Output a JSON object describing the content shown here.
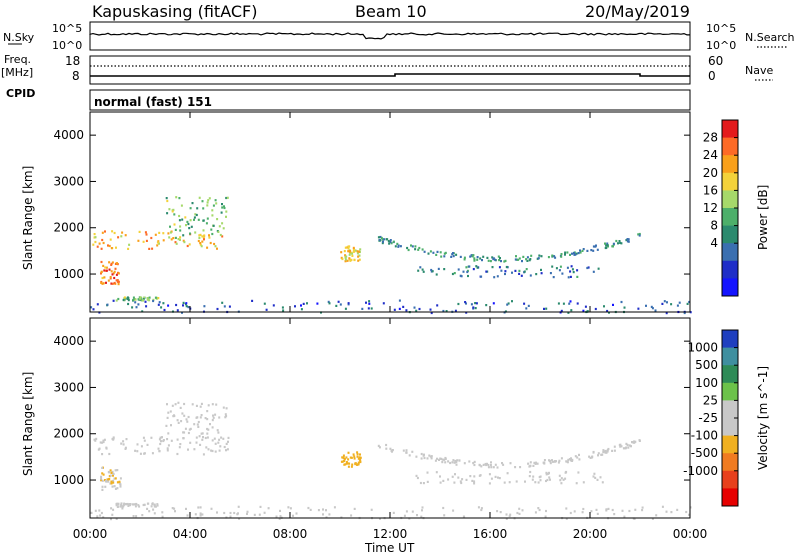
{
  "header": {
    "station": "Kapuskasing (fitACF)",
    "beam": "Beam 10",
    "date": "20/May/2019"
  },
  "strip": {
    "nsky_label": "N.Sky",
    "nsky_ticks": [
      "10^5",
      "10^0"
    ],
    "nsearch_label": "N.Search",
    "nsearch_ticks": [
      "10^5",
      "10^0"
    ],
    "freq_label": "Freq.",
    "freq_unit": "[MHz]",
    "freq_ticks": [
      "18",
      "8"
    ],
    "nave_label": "Nave",
    "nave_ticks": [
      "60",
      "0"
    ],
    "cpid_label": "CPID",
    "cpid_value": "normal (fast) 151"
  },
  "panels": {
    "ylabel": "Slant Range [km]",
    "yticks": [
      "4000",
      "3000",
      "2000",
      "1000"
    ],
    "xlabel": "Time UT",
    "xticks": [
      "00:00",
      "04:00",
      "08:00",
      "12:00",
      "16:00",
      "20:00",
      "00:00"
    ]
  },
  "colorbars": {
    "power": {
      "label": "Power [dB]",
      "ticks": [
        "28",
        "24",
        "20",
        "16",
        "12",
        "8",
        "4"
      ],
      "colors": [
        "#e41a1c",
        "#fd6a26",
        "#f9a01b",
        "#f4d23a",
        "#a6d96a",
        "#4daf6a",
        "#2b8a6e",
        "#3a6fb0",
        "#1f2ec8",
        "#1414ff"
      ]
    },
    "velocity": {
      "label": "Velocity [m s^-1]",
      "ticks": [
        "1000",
        "500",
        "100",
        "25",
        "-25",
        "-100",
        "-500",
        "-1000"
      ],
      "colors": [
        "#1f3fbf",
        "#3f8f9f",
        "#2e8b57",
        "#6cc24a",
        "#c8c8c8",
        "#c8c8c8",
        "#f0b020",
        "#f07b20",
        "#e8401c",
        "#e60000"
      ]
    }
  },
  "chart_data": {
    "type": "heatmap",
    "x_range": [
      "00:00",
      "24:00"
    ],
    "y_range_km": [
      180,
      4500
    ],
    "y_ticks_km": [
      1000,
      2000,
      3000,
      4000
    ],
    "power_range_db": [
      0,
      30
    ],
    "velocity_range_ms": [
      -1000,
      1000
    ],
    "features": [
      {
        "t_start": 0.0,
        "t_end": 5.5,
        "range_km": [
          1550,
          1950
        ],
        "power_db": 22,
        "velocity_ms": 0
      },
      {
        "t_start": 3.0,
        "t_end": 5.5,
        "range_km": [
          1800,
          2700
        ],
        "power_db": 14,
        "velocity_ms": 0
      },
      {
        "t_start": 0.4,
        "t_end": 1.2,
        "range_km": [
          800,
          1300
        ],
        "power_db": 26,
        "velocity_ms": -200
      },
      {
        "t_start": 1.0,
        "t_end": 2.7,
        "range_km": [
          450,
          520
        ],
        "power_db": 14,
        "velocity_ms": -80
      },
      {
        "t_start": 10.0,
        "t_end": 10.8,
        "range_km": [
          1300,
          1650
        ],
        "power_db": 20,
        "velocity_ms": -300
      },
      {
        "t_start": 11.5,
        "t_end": 22.0,
        "range_km": [
          1350,
          2000
        ],
        "power_db": 10,
        "velocity_ms": 0
      },
      {
        "t_start": 13.0,
        "t_end": 20.5,
        "range_km": [
          950,
          1200
        ],
        "power_db": 8,
        "velocity_ms": 0
      },
      {
        "t_start": 0.0,
        "t_end": 24.0,
        "range_km": [
          180,
          450
        ],
        "power_db": 6,
        "velocity_ms": -60
      }
    ]
  }
}
